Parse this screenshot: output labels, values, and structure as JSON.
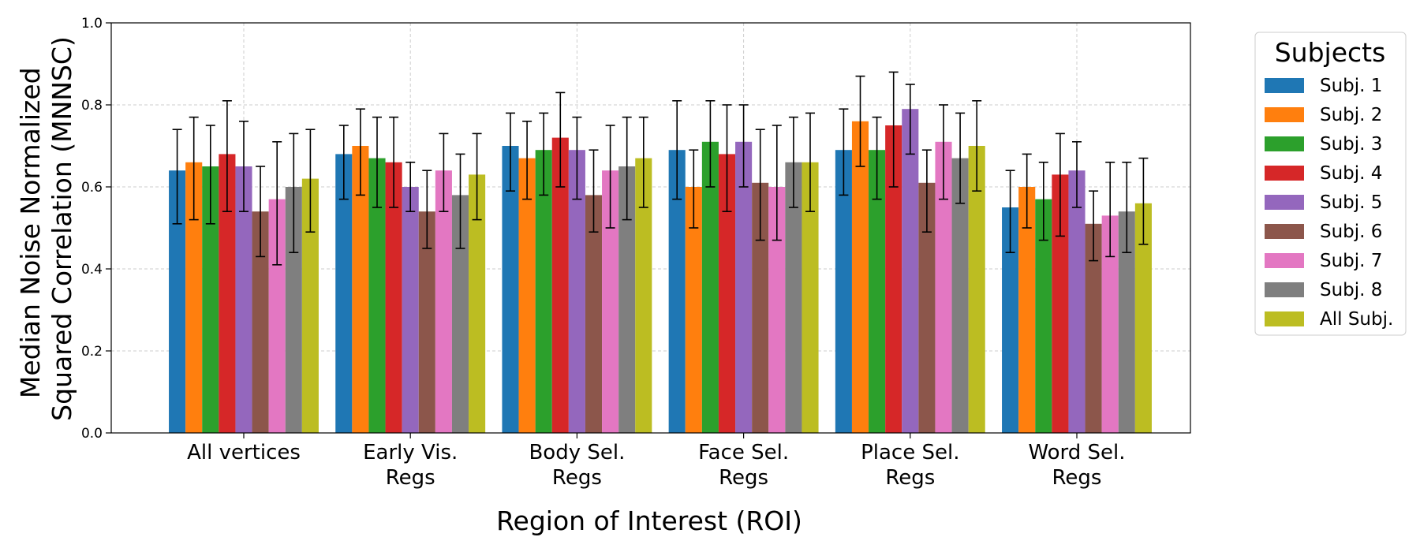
{
  "chart_data": {
    "type": "bar",
    "xlabel": "Region of Interest (ROI)",
    "ylabel_lines": [
      "Median Noise Normalized",
      "Squared Correlation (MNNSC)"
    ],
    "ylim": [
      0,
      1.0
    ],
    "yticks": [
      "0.0",
      "0.2",
      "0.4",
      "0.6",
      "0.8",
      "1.0"
    ],
    "grid": true,
    "legend": {
      "title": "Subjects",
      "placement": "outside-right"
    },
    "categories": [
      {
        "lines": [
          "All vertices"
        ]
      },
      {
        "lines": [
          "Early Vis.",
          "Regs"
        ]
      },
      {
        "lines": [
          "Body Sel.",
          "Regs"
        ]
      },
      {
        "lines": [
          "Face Sel.",
          "Regs"
        ]
      },
      {
        "lines": [
          "Place Sel.",
          "Regs"
        ]
      },
      {
        "lines": [
          "Word Sel.",
          "Regs"
        ]
      }
    ],
    "series": [
      {
        "name": "Subj. 1",
        "color": "#1f77b4",
        "values": [
          0.64,
          0.68,
          0.7,
          0.69,
          0.69,
          0.55
        ],
        "err_low": [
          0.51,
          0.57,
          0.59,
          0.57,
          0.58,
          0.44
        ],
        "err_high": [
          0.74,
          0.75,
          0.78,
          0.81,
          0.79,
          0.64
        ]
      },
      {
        "name": "Subj. 2",
        "color": "#ff7f0e",
        "values": [
          0.66,
          0.7,
          0.67,
          0.6,
          0.76,
          0.6
        ],
        "err_low": [
          0.52,
          0.58,
          0.57,
          0.5,
          0.65,
          0.5
        ],
        "err_high": [
          0.77,
          0.79,
          0.76,
          0.69,
          0.87,
          0.68
        ]
      },
      {
        "name": "Subj. 3",
        "color": "#2ca02c",
        "values": [
          0.65,
          0.67,
          0.69,
          0.71,
          0.69,
          0.57
        ],
        "err_low": [
          0.51,
          0.55,
          0.58,
          0.6,
          0.57,
          0.47
        ],
        "err_high": [
          0.75,
          0.77,
          0.78,
          0.81,
          0.77,
          0.66
        ]
      },
      {
        "name": "Subj. 4",
        "color": "#d62728",
        "values": [
          0.68,
          0.66,
          0.72,
          0.68,
          0.75,
          0.63
        ],
        "err_low": [
          0.54,
          0.55,
          0.6,
          0.54,
          0.6,
          0.48
        ],
        "err_high": [
          0.81,
          0.77,
          0.83,
          0.8,
          0.88,
          0.73
        ]
      },
      {
        "name": "Subj. 5",
        "color": "#9467bd",
        "values": [
          0.65,
          0.6,
          0.69,
          0.71,
          0.79,
          0.64
        ],
        "err_low": [
          0.54,
          0.54,
          0.57,
          0.6,
          0.68,
          0.55
        ],
        "err_high": [
          0.76,
          0.66,
          0.77,
          0.8,
          0.85,
          0.71
        ]
      },
      {
        "name": "Subj. 6",
        "color": "#8c564b",
        "values": [
          0.54,
          0.54,
          0.58,
          0.61,
          0.61,
          0.51
        ],
        "err_low": [
          0.43,
          0.45,
          0.49,
          0.47,
          0.49,
          0.42
        ],
        "err_high": [
          0.65,
          0.64,
          0.69,
          0.74,
          0.69,
          0.59
        ]
      },
      {
        "name": "Subj. 7",
        "color": "#e377c2",
        "values": [
          0.57,
          0.64,
          0.64,
          0.6,
          0.71,
          0.53
        ],
        "err_low": [
          0.41,
          0.54,
          0.5,
          0.47,
          0.57,
          0.43
        ],
        "err_high": [
          0.71,
          0.73,
          0.75,
          0.75,
          0.8,
          0.66
        ]
      },
      {
        "name": "Subj. 8",
        "color": "#7f7f7f",
        "values": [
          0.6,
          0.58,
          0.65,
          0.66,
          0.67,
          0.54
        ],
        "err_low": [
          0.44,
          0.45,
          0.52,
          0.55,
          0.56,
          0.44
        ],
        "err_high": [
          0.73,
          0.68,
          0.77,
          0.77,
          0.78,
          0.66
        ]
      },
      {
        "name": "All Subj.",
        "color": "#bcbd22",
        "values": [
          0.62,
          0.63,
          0.67,
          0.66,
          0.7,
          0.56
        ],
        "err_low": [
          0.49,
          0.52,
          0.55,
          0.54,
          0.59,
          0.46
        ],
        "err_high": [
          0.74,
          0.73,
          0.77,
          0.78,
          0.81,
          0.67
        ]
      }
    ]
  }
}
